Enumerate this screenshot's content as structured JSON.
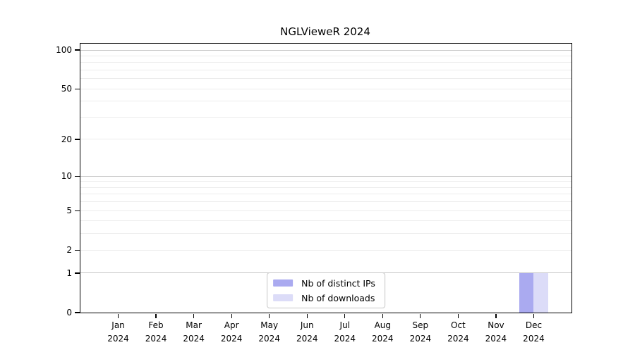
{
  "figure": {
    "background": "#ffffff"
  },
  "chart_data": {
    "type": "bar",
    "title": "NGLVieweR 2024",
    "categories": [
      "Jan 2024",
      "Feb 2024",
      "Mar 2024",
      "Apr 2024",
      "May 2024",
      "Jun 2024",
      "Jul 2024",
      "Aug 2024",
      "Sep 2024",
      "Oct 2024",
      "Nov 2024",
      "Dec 2024"
    ],
    "x_tick_months": [
      "Jan",
      "Feb",
      "Mar",
      "Apr",
      "May",
      "Jun",
      "Jul",
      "Aug",
      "Sep",
      "Oct",
      "Nov",
      "Dec"
    ],
    "x_tick_year": "2024",
    "series": [
      {
        "name": "Nb of distinct IPs",
        "color": "#aaaaf0",
        "values": [
          0,
          0,
          0,
          0,
          0,
          0,
          0,
          0,
          0,
          0,
          0,
          1
        ]
      },
      {
        "name": "Nb of downloads",
        "color": "#dcdcf8",
        "values": [
          0,
          0,
          0,
          0,
          0,
          0,
          0,
          0,
          0,
          0,
          0,
          1
        ]
      }
    ],
    "yscale": "log1p",
    "ylim": [
      0,
      112
    ],
    "yticks": [
      0,
      1,
      2,
      5,
      10,
      20,
      50,
      100
    ],
    "gridlines_major": [
      1,
      10,
      100
    ],
    "gridlines_minor": [
      2,
      3,
      4,
      5,
      6,
      7,
      8,
      9,
      20,
      30,
      40,
      50,
      60,
      70,
      80,
      90
    ],
    "grid": true,
    "legend_position": "lower center",
    "colors": {
      "grid_major": "#c6c6c6",
      "grid_minor": "#ececec",
      "axis": "#000000",
      "text": "#000000",
      "legend_border": "#c8c8c8"
    }
  }
}
